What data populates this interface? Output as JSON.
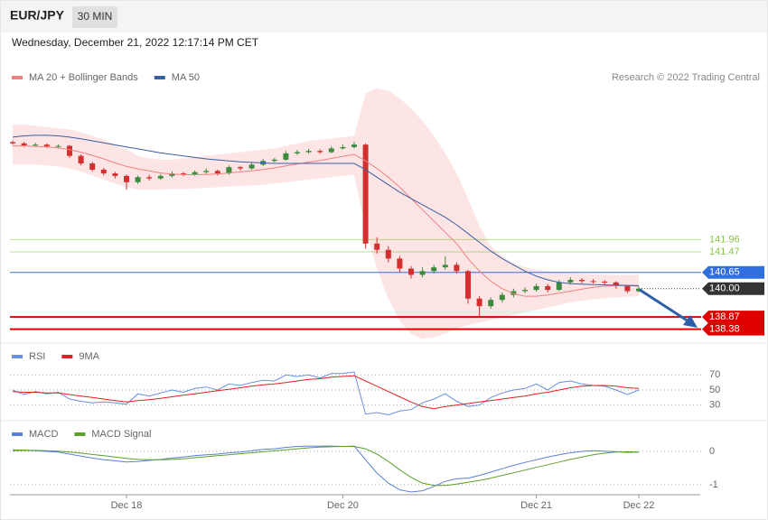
{
  "header": {
    "symbol": "EUR/JPY",
    "timeframe": "30 MIN",
    "timestamp": "Wednesday, December 21, 2022 12:17:14 PM CET",
    "credit": "Research © 2022 Trading Central"
  },
  "chart_data": [
    {
      "type": "candlestick",
      "up_color": "#3c8a3c",
      "down_color": "#d32f2f",
      "ylim": [
        137.9,
        148.1
      ],
      "open": [
        145.85,
        145.8,
        145.72,
        145.75,
        145.68,
        145.7,
        145.3,
        145.0,
        144.75,
        144.6,
        144.5,
        144.25,
        144.45,
        144.4,
        144.5,
        144.6,
        144.55,
        144.65,
        144.7,
        144.6,
        144.85,
        144.8,
        144.95,
        145.1,
        145.15,
        145.4,
        145.45,
        145.5,
        145.45,
        145.6,
        145.65,
        145.75,
        141.8,
        141.55,
        141.2,
        140.8,
        140.55,
        140.7,
        140.85,
        140.95,
        140.7,
        139.6,
        139.3,
        139.55,
        139.75,
        139.9,
        139.95,
        140.1,
        139.95,
        140.25,
        140.35,
        140.3,
        140.28,
        140.25,
        140.1,
        139.9
      ],
      "high": [
        145.92,
        145.86,
        145.82,
        145.8,
        145.76,
        145.74,
        145.36,
        145.06,
        144.82,
        144.66,
        144.56,
        144.52,
        144.55,
        144.58,
        144.68,
        144.66,
        144.72,
        144.8,
        144.76,
        144.92,
        144.9,
        145.02,
        145.18,
        145.22,
        145.5,
        145.54,
        145.58,
        145.56,
        145.68,
        145.75,
        145.86,
        145.8,
        142.05,
        141.7,
        141.3,
        140.9,
        140.85,
        140.95,
        141.3,
        141.05,
        140.75,
        139.7,
        139.65,
        139.85,
        140.0,
        140.05,
        140.2,
        140.18,
        140.35,
        140.45,
        140.42,
        140.38,
        140.35,
        140.3,
        140.15,
        140.08
      ],
      "low": [
        145.74,
        145.66,
        145.66,
        145.62,
        145.6,
        145.22,
        144.92,
        144.68,
        144.52,
        144.4,
        143.95,
        144.18,
        144.32,
        144.34,
        144.44,
        144.48,
        144.5,
        144.58,
        144.52,
        144.55,
        144.72,
        144.75,
        144.9,
        145.04,
        145.1,
        145.34,
        145.38,
        145.38,
        145.4,
        145.55,
        145.6,
        141.6,
        141.4,
        141.05,
        140.65,
        140.4,
        140.45,
        140.6,
        140.75,
        140.6,
        139.4,
        138.9,
        139.2,
        139.45,
        139.65,
        139.82,
        139.88,
        139.85,
        139.9,
        140.18,
        140.22,
        140.2,
        140.15,
        140.0,
        139.82,
        139.85
      ],
      "close": [
        145.8,
        145.72,
        145.75,
        145.68,
        145.7,
        145.3,
        145.0,
        144.75,
        144.6,
        144.5,
        144.25,
        144.45,
        144.4,
        144.5,
        144.6,
        144.55,
        144.65,
        144.7,
        144.6,
        144.85,
        144.8,
        144.95,
        145.1,
        145.15,
        145.4,
        145.45,
        145.5,
        145.45,
        145.6,
        145.65,
        145.75,
        141.8,
        141.55,
        141.2,
        140.8,
        140.55,
        140.7,
        140.85,
        140.95,
        140.7,
        139.6,
        139.3,
        139.55,
        139.75,
        139.9,
        139.95,
        140.1,
        139.95,
        140.25,
        140.35,
        140.3,
        140.28,
        140.25,
        140.1,
        139.9,
        140.0
      ],
      "series": [
        {
          "name": "MA 20 + Bollinger Bands",
          "color": "#f08080",
          "band_color": "#fde0e0",
          "values": [
            145.7,
            145.7,
            145.68,
            145.66,
            145.62,
            145.55,
            145.45,
            145.32,
            145.18,
            145.02,
            144.88,
            144.78,
            144.7,
            144.62,
            144.58,
            144.55,
            144.55,
            144.56,
            144.58,
            144.62,
            144.66,
            144.7,
            144.76,
            144.82,
            144.9,
            144.98,
            145.05,
            145.12,
            145.2,
            145.28,
            145.36,
            145.1,
            144.8,
            144.45,
            144.05,
            143.6,
            143.15,
            142.7,
            142.25,
            141.8,
            141.2,
            140.7,
            140.3,
            140.0,
            139.8,
            139.7,
            139.7,
            139.75,
            139.82,
            139.9,
            139.98,
            140.05,
            140.1,
            140.12,
            140.12,
            140.1
          ],
          "upper": [
            146.55,
            146.55,
            146.5,
            146.45,
            146.4,
            146.35,
            146.25,
            146.1,
            145.95,
            145.75,
            145.55,
            145.3,
            145.2,
            145.15,
            145.15,
            145.2,
            145.25,
            145.3,
            145.35,
            145.4,
            145.45,
            145.5,
            145.55,
            145.6,
            145.7,
            145.8,
            145.9,
            145.95,
            146.0,
            146.05,
            146.1,
            147.8,
            148.0,
            147.9,
            147.6,
            147.2,
            146.7,
            146.1,
            145.4,
            144.6,
            143.6,
            142.5,
            141.7,
            141.3,
            141.0,
            140.85,
            140.75,
            140.7,
            140.65,
            140.62,
            140.6,
            140.58,
            140.56,
            140.55,
            140.55,
            140.55
          ],
          "lower": [
            144.95,
            144.95,
            144.95,
            144.92,
            144.88,
            144.8,
            144.68,
            144.52,
            144.35,
            144.2,
            144.05,
            143.95,
            143.95,
            143.95,
            143.98,
            143.98,
            144.0,
            144.02,
            144.05,
            144.08,
            144.1,
            144.12,
            144.15,
            144.2,
            144.25,
            144.3,
            144.35,
            144.4,
            144.45,
            144.5,
            144.55,
            142.4,
            140.8,
            139.6,
            138.7,
            138.2,
            138.0,
            138.05,
            138.2,
            138.4,
            138.55,
            138.65,
            138.75,
            138.85,
            138.95,
            139.05,
            139.15,
            139.25,
            139.35,
            139.45,
            139.52,
            139.58,
            139.62,
            139.65,
            139.68,
            139.7
          ]
        },
        {
          "name": "MA 50",
          "color": "#3a5fa0",
          "values": [
            146.05,
            146.1,
            146.12,
            146.12,
            146.1,
            146.05,
            145.98,
            145.9,
            145.82,
            145.74,
            145.66,
            145.58,
            145.5,
            145.42,
            145.36,
            145.3,
            145.24,
            145.18,
            145.14,
            145.1,
            145.06,
            145.04,
            145.02,
            145.0,
            145.0,
            145.0,
            145.0,
            145.0,
            145.0,
            145.0,
            145.0,
            144.75,
            144.45,
            144.15,
            143.85,
            143.6,
            143.35,
            143.1,
            142.85,
            142.55,
            142.2,
            141.85,
            141.5,
            141.2,
            140.95,
            140.7,
            140.5,
            140.35,
            140.25,
            140.2,
            140.18,
            140.16,
            140.15,
            140.14,
            140.13,
            140.12
          ]
        }
      ],
      "levels": [
        {
          "price": 141.96,
          "color": "#8bc34a",
          "style": "text"
        },
        {
          "price": 141.47,
          "color": "#8bc34a",
          "style": "text"
        },
        {
          "price": 140.65,
          "color": "#2f6fe0",
          "style": "badge"
        },
        {
          "price": {
            "value": 140,
            "label": "140.00"
          },
          "color": "#333333",
          "style": "dotted"
        },
        {
          "price": 138.87,
          "color": "#e00000",
          "style": "badge"
        },
        {
          "price": 138.38,
          "color": "#e00000",
          "style": "badge"
        }
      ]
    },
    {
      "type": "line",
      "ylim": [
        14,
        98
      ],
      "yticks": [
        30,
        50,
        70
      ],
      "series": [
        {
          "name": "RSI",
          "color": "#6a8ee0",
          "values": [
            50,
            44,
            48,
            45,
            47,
            38,
            35,
            33,
            34,
            33,
            31,
            45,
            42,
            46,
            50,
            47,
            52,
            54,
            50,
            58,
            56,
            60,
            63,
            62,
            70,
            68,
            70,
            66,
            72,
            72,
            74,
            18,
            20,
            17,
            22,
            24,
            33,
            38,
            45,
            35,
            28,
            30,
            40,
            46,
            50,
            52,
            58,
            50,
            60,
            62,
            58,
            56,
            55,
            50,
            44,
            50
          ]
        },
        {
          "name": "9MA",
          "color": "#e02020",
          "values": [
            48,
            47,
            47,
            46,
            46,
            44,
            42,
            40,
            38,
            36,
            34,
            36,
            37,
            39,
            41,
            43,
            45,
            47,
            49,
            51,
            53,
            55,
            57,
            58,
            60,
            62,
            64,
            65,
            67,
            68,
            69,
            62,
            55,
            48,
            41,
            34,
            28,
            25,
            28,
            30,
            32,
            34,
            36,
            38,
            40,
            42,
            45,
            47,
            50,
            53,
            55,
            56,
            56,
            55,
            53,
            52
          ]
        }
      ]
    },
    {
      "type": "line",
      "ylim": [
        -1.3,
        0.76
      ],
      "yticks": [
        0,
        -1
      ],
      "categories": [
        null,
        null,
        null,
        null,
        null,
        null,
        null,
        null,
        null,
        null,
        "Dec 18",
        null,
        null,
        null,
        null,
        null,
        null,
        null,
        null,
        null,
        null,
        null,
        null,
        null,
        null,
        null,
        null,
        null,
        null,
        "Dec 20",
        null,
        null,
        null,
        null,
        null,
        null,
        null,
        null,
        null,
        null,
        null,
        null,
        null,
        null,
        null,
        null,
        "Dec 21",
        null,
        null,
        null,
        null,
        null,
        null,
        null,
        null,
        "Dec 22"
      ],
      "series": [
        {
          "name": "MACD",
          "color": "#5a7fd8",
          "values": [
            0.02,
            0.03,
            0.02,
            0.0,
            -0.02,
            -0.08,
            -0.14,
            -0.2,
            -0.25,
            -0.28,
            -0.32,
            -0.3,
            -0.27,
            -0.24,
            -0.2,
            -0.17,
            -0.13,
            -0.1,
            -0.08,
            -0.04,
            -0.02,
            0.02,
            0.06,
            0.08,
            0.12,
            0.15,
            0.16,
            0.16,
            0.16,
            0.15,
            0.16,
            -0.25,
            -0.65,
            -0.95,
            -1.15,
            -1.22,
            -1.18,
            -1.05,
            -0.9,
            -0.82,
            -0.8,
            -0.72,
            -0.62,
            -0.52,
            -0.42,
            -0.33,
            -0.25,
            -0.17,
            -0.1,
            -0.04,
            0.0,
            0.02,
            0.01,
            -0.01,
            -0.03,
            -0.02
          ]
        },
        {
          "name": "MACD Signal",
          "color": "#5aa02c",
          "values": [
            0.05,
            0.04,
            0.03,
            0.02,
            0.01,
            -0.02,
            -0.05,
            -0.09,
            -0.13,
            -0.17,
            -0.21,
            -0.24,
            -0.25,
            -0.25,
            -0.24,
            -0.22,
            -0.19,
            -0.16,
            -0.13,
            -0.1,
            -0.07,
            -0.04,
            -0.01,
            0.02,
            0.05,
            0.08,
            0.11,
            0.13,
            0.14,
            0.15,
            0.15,
            0.08,
            -0.08,
            -0.3,
            -0.55,
            -0.78,
            -0.95,
            -1.02,
            -1.02,
            -0.98,
            -0.93,
            -0.87,
            -0.8,
            -0.72,
            -0.64,
            -0.56,
            -0.48,
            -0.4,
            -0.32,
            -0.24,
            -0.17,
            -0.1,
            -0.05,
            -0.02,
            -0.01,
            -0.02
          ]
        }
      ]
    }
  ]
}
